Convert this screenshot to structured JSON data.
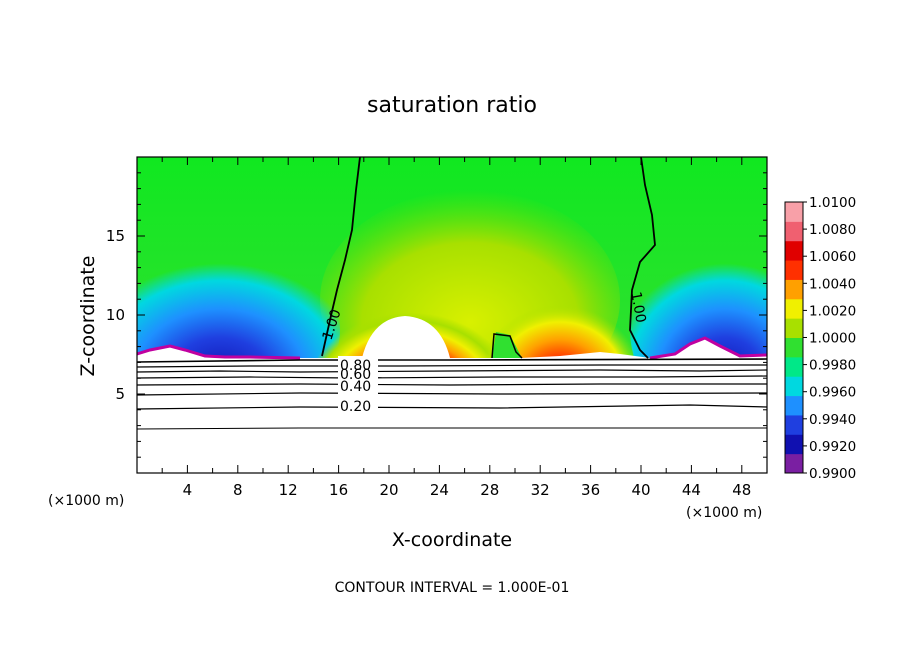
{
  "chart_data": {
    "type": "heatmap",
    "title": "saturation ratio",
    "xlabel": "X-coordinate",
    "ylabel": "Z-coordinate",
    "x_unit": "(×1000 m)",
    "y_unit": "(×1000 m)",
    "xlim": [
      0,
      50
    ],
    "ylim": [
      0,
      20
    ],
    "x_ticks": [
      "4",
      "8",
      "12",
      "16",
      "20",
      "24",
      "28",
      "32",
      "36",
      "40",
      "44",
      "48"
    ],
    "y_ticks": [
      "5",
      "10",
      "15"
    ],
    "colorbar": {
      "labels": [
        "0.9900",
        "0.9920",
        "0.9940",
        "0.9960",
        "0.9980",
        "1.0000",
        "1.0020",
        "1.0040",
        "1.0060",
        "1.0080",
        "1.0100"
      ],
      "colors": [
        "#7a1fa2",
        "#1010b0",
        "#1f3fe0",
        "#1e90ff",
        "#00d8e0",
        "#00e888",
        "#30e030",
        "#a8e000",
        "#f0f000",
        "#ffa000",
        "#ff3000",
        "#e00000",
        "#f06070",
        "#f8a0a8"
      ]
    },
    "contour_labels": [
      "1.00",
      "1.00",
      "0.80",
      "0.60",
      "0.40",
      "0.20"
    ],
    "footer": "CONTOUR INTERVAL = 1.000E-01"
  }
}
